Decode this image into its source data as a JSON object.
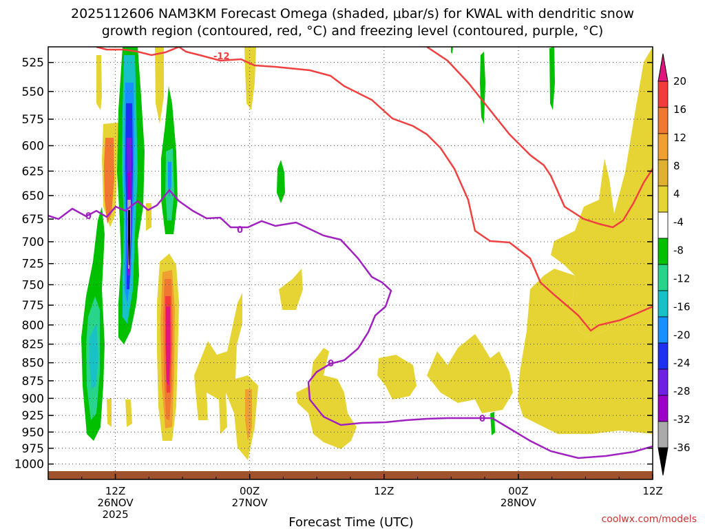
{
  "chart_data": {
    "type": "heatmap",
    "title_line1": "2025112606 NAM3KM Forecast Omega (shaded, μbar/s) for KWAL with dendritic snow",
    "title_line2": "growth region (contoured, red, °C) and freezing level (contoured, purple, °C)",
    "xlabel": "Forecast Time (UTC)",
    "credit": "coolwx.com/models",
    "y_axis": {
      "ticks": [
        525,
        550,
        575,
        600,
        625,
        650,
        675,
        700,
        725,
        750,
        775,
        800,
        825,
        850,
        875,
        900,
        925,
        950,
        975,
        1000
      ],
      "labels": [
        "525",
        "550",
        "575",
        "600",
        "625",
        "650",
        "675",
        "700",
        "725",
        "750",
        "775",
        "800",
        "825",
        "850",
        "875",
        "900",
        "925",
        "950",
        "975",
        "1000"
      ],
      "range": [
        512,
        1025
      ],
      "scale": "log-pressure"
    },
    "x_axis": {
      "range_hours": [
        6,
        60
      ],
      "ticks": [
        {
          "hour": 12,
          "line1": "12Z",
          "line2": "26NOV",
          "line3": "2025"
        },
        {
          "hour": 24,
          "line1": "00Z",
          "line2": "27NOV",
          "line3": ""
        },
        {
          "hour": 36,
          "line1": "12Z",
          "line2": "",
          "line3": ""
        },
        {
          "hour": 48,
          "line1": "00Z",
          "line2": "28NOV",
          "line3": ""
        },
        {
          "hour": 60,
          "line1": "12Z",
          "line2": "",
          "line3": ""
        }
      ]
    },
    "grid": "dotted",
    "colorbar": {
      "labels": [
        "20",
        "16",
        "12",
        "8",
        "4",
        "-4",
        "-8",
        "-12",
        "-16",
        "-20",
        "-24",
        "-28",
        "-32",
        "-36"
      ],
      "colors_top_to_bottom": [
        "#e0157e",
        "#f23c3c",
        "#f07830",
        "#f0a030",
        "#e0b030",
        "#e6d435",
        "#ffffff",
        "#00c000",
        "#28d48a",
        "#18c0c8",
        "#1890ff",
        "#1e30f0",
        "#7020e0",
        "#9c00c8",
        "#aaaaaa",
        "#000000"
      ]
    },
    "contours": {
      "dgz_red": {
        "color": "#f04040",
        "label": "-12"
      },
      "freezing_purple": {
        "color": "#a020c0",
        "label": "0"
      }
    },
    "colors": {
      "ground": "#a0522d"
    }
  }
}
